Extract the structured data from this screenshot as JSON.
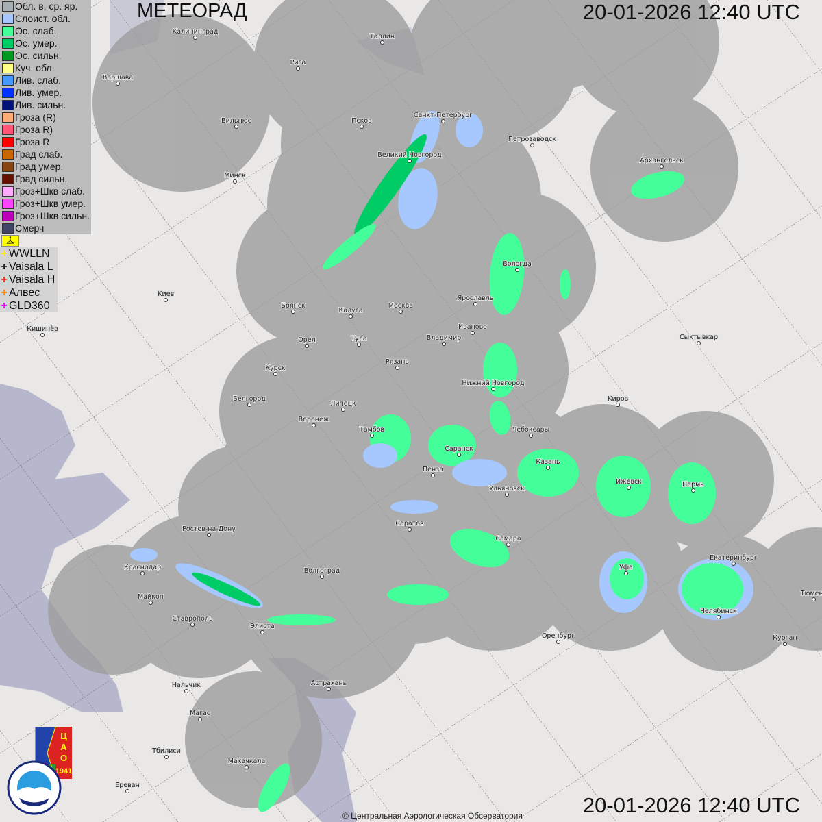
{
  "header": {
    "title": "МЕТЕОРАД",
    "timestamp": "20-01-2026  12:40 UTC"
  },
  "footer": {
    "timestamp": "20-01-2026  12:40 UTC",
    "copyright": "© Центральная Аэрологическая Обсерватория"
  },
  "legend": [
    {
      "label": "Обл. в. ср. яр.",
      "color": "#a9b0b4"
    },
    {
      "label": "Слоист. обл.",
      "color": "#a6c8ff"
    },
    {
      "label": "Ос. слаб.",
      "color": "#44ff99"
    },
    {
      "label": "Ос. умер.",
      "color": "#00cc66"
    },
    {
      "label": "Ос. сильн.",
      "color": "#009922"
    },
    {
      "label": "Куч. обл.",
      "color": "#ffff88"
    },
    {
      "label": "Лив. слаб.",
      "color": "#4499ff"
    },
    {
      "label": "Лив. умер.",
      "color": "#0033ff"
    },
    {
      "label": "Лив. сильн.",
      "color": "#001177"
    },
    {
      "label": "Гроза (R)",
      "color": "#ffaa77"
    },
    {
      "label": "Гроза R)",
      "color": "#ff5577"
    },
    {
      "label": "Гроза R",
      "color": "#ff0000"
    },
    {
      "label": "Град слаб.",
      "color": "#cc6600"
    },
    {
      "label": "Град умер.",
      "color": "#884411"
    },
    {
      "label": "Град сильн.",
      "color": "#661100"
    },
    {
      "label": "Гроз+Шкв слаб.",
      "color": "#ffaaff"
    },
    {
      "label": "Гроз+Шкв умер.",
      "color": "#ff44ff"
    },
    {
      "label": "Гроз+Шкв сильн.",
      "color": "#bb00bb"
    },
    {
      "label": "Смерч",
      "color": "#444466"
    }
  ],
  "lightning": [
    {
      "label": "WWLLN",
      "color": "#ffee00"
    },
    {
      "label": "Vaisala L",
      "color": "#111111"
    },
    {
      "label": "Vaisala H",
      "color": "#ff2222"
    },
    {
      "label": "Алвес",
      "color": "#ff8800"
    },
    {
      "label": "GLD360",
      "color": "#ff00ff"
    }
  ],
  "flag_icon": "flag-icon",
  "logos": {
    "cao": "ЦАО 1941",
    "roshydromet": "РОСГИДРОМЕТ ROSHYDROMET"
  },
  "cities": [
    "Калининград",
    "Таллин",
    "Рига",
    "Варшава",
    "Санкт-Петербург",
    "Псков",
    "Петрозаводск",
    "Архангельск",
    "Вильнюс",
    "Великий Новгород",
    "Минск",
    "Вологда",
    "Ярославль",
    "Киев",
    "Брянск",
    "Калуга",
    "Москва",
    "Иваново",
    "Кишинёв",
    "Орёл",
    "Тула",
    "Владимир",
    "Сыктывкар",
    "Рязань",
    "Курск",
    "Нижний Новгород",
    "Белгород",
    "Липецк",
    "Киров",
    "Воронеж",
    "Тамбов",
    "Чебоксары",
    "Саранск",
    "Казань",
    "Пенза",
    "Ижевск",
    "Пермь",
    "Ульяновск",
    "Саратов",
    "Ростов-на-Дону",
    "Самара",
    "Екатеринбург",
    "Краснодар",
    "Волгоград",
    "Уфа",
    "Тюмень",
    "Майкоп",
    "Челябинск",
    "Ставрополь",
    "Элиста",
    "Оренбург",
    "Курган",
    "Нальчик",
    "Астрахань",
    "Магас",
    "Тбилиси",
    "Махачкала",
    "Ереван"
  ],
  "colors": {
    "background": "#e9e8e6",
    "radar_coverage": "#9c9c9c",
    "sea": "#b6b6cc"
  }
}
